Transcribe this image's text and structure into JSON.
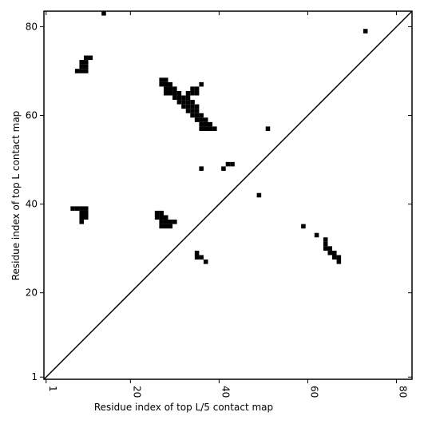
{
  "chart_data": {
    "type": "scatter",
    "marker": "square",
    "x_label": "Residue index of top L/5 contact map",
    "y_label": "Residue index of top L contact map",
    "xlim": [
      0.5,
      83.5
    ],
    "ylim": [
      0.5,
      83.5
    ],
    "xticks": [
      1,
      20,
      40,
      60,
      80
    ],
    "yticks": [
      1,
      20,
      40,
      60,
      80
    ],
    "color": "#000000",
    "x": [
      14,
      73,
      10,
      11,
      9,
      10,
      9,
      10,
      8,
      9,
      10,
      27,
      28,
      27,
      28,
      29,
      36,
      28,
      29,
      30,
      34,
      35,
      28,
      29,
      30,
      31,
      33,
      34,
      35,
      30,
      31,
      32,
      33,
      31,
      32,
      33,
      34,
      32,
      33,
      34,
      35,
      33,
      34,
      35,
      34,
      35,
      36,
      35,
      36,
      37,
      36,
      37,
      38,
      36,
      37,
      38,
      39,
      51,
      36,
      41,
      42,
      43,
      49,
      7,
      8,
      9,
      10,
      9,
      10,
      9,
      10,
      9,
      26,
      27,
      26,
      27,
      28,
      27,
      28,
      29,
      30,
      27,
      28,
      29,
      59,
      62,
      64,
      64,
      64,
      65,
      65,
      66,
      66,
      67,
      67,
      35,
      35,
      36,
      37
    ],
    "y": [
      83,
      79,
      73,
      73,
      72,
      72,
      71,
      71,
      70,
      70,
      70,
      68,
      68,
      67,
      67,
      67,
      67,
      66,
      66,
      66,
      66,
      66,
      65,
      65,
      65,
      65,
      65,
      65,
      65,
      64,
      64,
      64,
      64,
      63,
      63,
      63,
      63,
      62,
      62,
      62,
      62,
      61,
      61,
      61,
      60,
      60,
      60,
      59,
      59,
      59,
      58,
      58,
      58,
      57,
      57,
      57,
      57,
      57,
      48,
      48,
      49,
      49,
      42,
      39,
      39,
      39,
      39,
      38,
      38,
      37,
      37,
      36,
      38,
      38,
      37,
      37,
      37,
      36,
      36,
      36,
      36,
      35,
      35,
      35,
      35,
      33,
      32,
      31,
      30,
      30,
      29,
      29,
      28,
      28,
      27,
      29,
      28,
      28,
      27
    ]
  }
}
